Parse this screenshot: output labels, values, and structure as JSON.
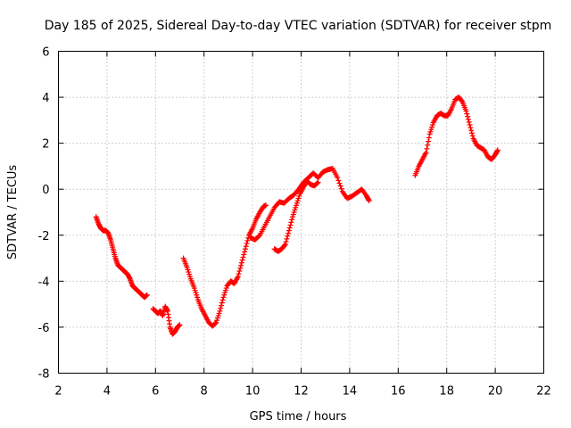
{
  "chart_data": {
    "type": "scatter",
    "title": "Day 185 of 2025, Sidereal Day-to-day VTEC variation (SDTVAR) for receiver stpm",
    "xlabel": "GPS time / hours",
    "ylabel": "SDTVAR / TECUs",
    "xlim": [
      2,
      22
    ],
    "ylim": [
      -8,
      6
    ],
    "x_ticks": [
      "2",
      "4",
      "6",
      "8",
      "10",
      "12",
      "14",
      "16",
      "18",
      "20",
      "22"
    ],
    "y_ticks": [
      "-8",
      "-6",
      "-4",
      "-2",
      "0",
      "2",
      "4",
      "6"
    ],
    "grid": true,
    "marker": "plus",
    "color": "#ff0000",
    "series": [
      {
        "x": [
          3.55,
          3.65,
          3.75,
          3.85,
          3.95,
          4.05,
          4.15,
          4.25,
          4.35,
          4.45,
          4.55,
          4.65,
          4.75,
          4.85,
          4.95,
          5.05,
          5.15,
          5.25,
          5.35,
          5.45,
          5.55,
          5.65
        ],
        "y": [
          -1.2,
          -1.5,
          -1.7,
          -1.8,
          -1.8,
          -1.9,
          -2.2,
          -2.6,
          -3.0,
          -3.3,
          -3.4,
          -3.5,
          -3.6,
          -3.7,
          -3.9,
          -4.2,
          -4.3,
          -4.4,
          -4.5,
          -4.6,
          -4.7,
          -4.6
        ]
      },
      {
        "x": [
          5.9,
          6.0,
          6.1,
          6.2,
          6.3,
          6.4,
          6.5,
          6.6,
          6.7,
          6.8,
          6.9,
          7.0
        ],
        "y": [
          -5.2,
          -5.3,
          -5.4,
          -5.3,
          -5.5,
          -5.1,
          -5.3,
          -6.0,
          -6.3,
          -6.2,
          -6.0,
          -5.9
        ]
      },
      {
        "x": [
          7.15,
          7.3,
          7.45,
          7.6,
          7.75,
          7.9,
          8.05,
          8.2,
          8.35,
          8.5,
          8.65,
          8.8,
          8.95,
          9.1,
          9.25,
          9.4,
          9.55,
          9.7,
          9.85,
          10.0,
          10.15,
          10.3,
          10.45,
          10.55
        ],
        "y": [
          -3.0,
          -3.4,
          -3.9,
          -4.3,
          -4.8,
          -5.2,
          -5.5,
          -5.8,
          -5.95,
          -5.8,
          -5.3,
          -4.7,
          -4.2,
          -4.0,
          -4.1,
          -3.8,
          -3.2,
          -2.6,
          -2.0,
          -1.7,
          -1.3,
          -1.0,
          -0.75,
          -0.7
        ]
      },
      {
        "x": [
          9.9,
          10.1,
          10.3,
          10.5,
          10.7,
          10.9,
          11.1,
          11.3,
          11.5,
          11.7,
          11.9,
          12.1,
          12.3,
          12.5,
          12.7,
          12.9,
          13.1,
          13.3,
          13.5,
          13.7,
          13.9,
          14.1,
          14.3,
          14.5,
          14.7,
          14.8
        ],
        "y": [
          -2.1,
          -2.2,
          -2.0,
          -1.6,
          -1.2,
          -0.8,
          -0.55,
          -0.6,
          -0.4,
          -0.25,
          0.0,
          0.3,
          0.5,
          0.7,
          0.5,
          0.75,
          0.85,
          0.9,
          0.5,
          -0.1,
          -0.4,
          -0.3,
          -0.15,
          0.0,
          -0.3,
          -0.5
        ]
      },
      {
        "x": [
          10.9,
          11.05,
          11.2,
          11.35,
          11.5,
          11.65,
          11.8,
          11.95,
          12.1,
          12.25,
          12.4,
          12.55,
          12.7
        ],
        "y": [
          -2.6,
          -2.7,
          -2.6,
          -2.4,
          -1.8,
          -1.2,
          -0.7,
          -0.2,
          0.1,
          0.35,
          0.2,
          0.15,
          0.3
        ]
      },
      {
        "x": [
          16.7,
          16.85,
          17.0,
          17.15,
          17.3,
          17.45,
          17.6,
          17.75,
          17.9,
          18.05,
          18.2,
          18.35,
          18.5,
          18.65,
          18.8,
          18.95,
          19.1,
          19.25,
          19.4,
          19.55,
          19.7,
          19.85,
          20.0,
          20.1
        ],
        "y": [
          0.6,
          1.0,
          1.3,
          1.6,
          2.4,
          2.9,
          3.2,
          3.3,
          3.2,
          3.2,
          3.5,
          3.9,
          4.0,
          3.8,
          3.4,
          2.8,
          2.2,
          1.9,
          1.8,
          1.7,
          1.4,
          1.3,
          1.5,
          1.7
        ]
      }
    ]
  }
}
